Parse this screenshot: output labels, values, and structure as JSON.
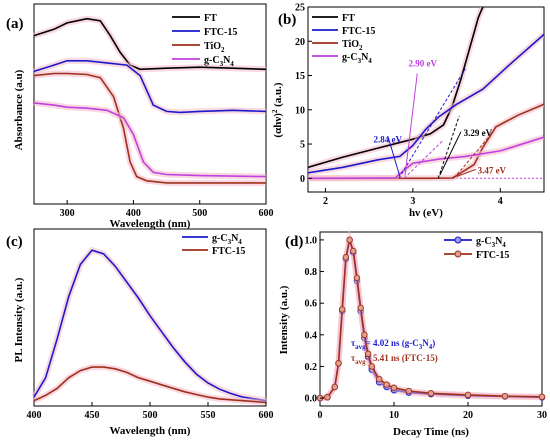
{
  "figure": {
    "panels": [
      {
        "label": "(a)"
      },
      {
        "label": "(b)"
      },
      {
        "label": "(c)"
      },
      {
        "label": "(d)"
      }
    ]
  },
  "chart_data": [
    {
      "type": "line",
      "panel": "(a)",
      "xlabel": "Wavelength (nm)",
      "ylabel": "Absorbance (a.u)",
      "xlim": [
        250,
        600
      ],
      "x_ticks": [
        300,
        400,
        500,
        600
      ],
      "y_ticks": [],
      "legend_position": "top-right",
      "series": [
        {
          "name": "FT",
          "color": "#000000",
          "points": [
            [
              250,
              0.8
            ],
            [
              280,
              0.83
            ],
            [
              300,
              0.86
            ],
            [
              330,
              0.88
            ],
            [
              350,
              0.87
            ],
            [
              365,
              0.8
            ],
            [
              380,
              0.72
            ],
            [
              395,
              0.66
            ],
            [
              410,
              0.64
            ],
            [
              450,
              0.645
            ],
            [
              500,
              0.65
            ],
            [
              550,
              0.645
            ],
            [
              600,
              0.64
            ]
          ]
        },
        {
          "name": "FTC-15",
          "color": "#1a1acc",
          "points": [
            [
              250,
              0.63
            ],
            [
              280,
              0.66
            ],
            [
              300,
              0.68
            ],
            [
              330,
              0.68
            ],
            [
              360,
              0.67
            ],
            [
              390,
              0.66
            ],
            [
              410,
              0.61
            ],
            [
              430,
              0.47
            ],
            [
              450,
              0.44
            ],
            [
              470,
              0.435
            ],
            [
              500,
              0.44
            ],
            [
              550,
              0.445
            ],
            [
              600,
              0.44
            ]
          ]
        },
        {
          "name": "TiO2",
          "color": "#a0301c",
          "points": [
            [
              250,
              0.61
            ],
            [
              280,
              0.62
            ],
            [
              300,
              0.62
            ],
            [
              330,
              0.615
            ],
            [
              350,
              0.6
            ],
            [
              370,
              0.51
            ],
            [
              385,
              0.36
            ],
            [
              395,
              0.2
            ],
            [
              405,
              0.13
            ],
            [
              420,
              0.11
            ],
            [
              450,
              0.1
            ],
            [
              500,
              0.1
            ],
            [
              600,
              0.1
            ]
          ]
        },
        {
          "name": "g-C3N4",
          "color": "#c040e0",
          "points": [
            [
              250,
              0.48
            ],
            [
              280,
              0.47
            ],
            [
              300,
              0.46
            ],
            [
              330,
              0.455
            ],
            [
              360,
              0.445
            ],
            [
              385,
              0.41
            ],
            [
              400,
              0.33
            ],
            [
              415,
              0.2
            ],
            [
              430,
              0.15
            ],
            [
              450,
              0.14
            ],
            [
              500,
              0.135
            ],
            [
              600,
              0.13
            ]
          ]
        }
      ]
    },
    {
      "type": "line",
      "panel": "(b)",
      "xlabel": "hν (eV)",
      "ylabel": "(αhν)² (a.u.)",
      "xlim": [
        1.8,
        4.5
      ],
      "ylim": [
        -2,
        25
      ],
      "x_ticks": [
        2,
        3,
        4
      ],
      "y_ticks": [
        0,
        5,
        10,
        15,
        20,
        25
      ],
      "legend_position": "top-left",
      "series": [
        {
          "name": "FT",
          "color": "#000000",
          "points": [
            [
              1.8,
              1.6
            ],
            [
              2.2,
              3.1
            ],
            [
              2.6,
              4.4
            ],
            [
              3.0,
              5.7
            ],
            [
              3.2,
              6.5
            ],
            [
              3.35,
              7.8
            ],
            [
              3.45,
              10.5
            ],
            [
              3.55,
              14.5
            ],
            [
              3.65,
              19.0
            ],
            [
              3.75,
              23.5
            ],
            [
              3.8,
              25.0
            ]
          ]
        },
        {
          "name": "FTC-15",
          "color": "#1a1acc",
          "points": [
            [
              1.8,
              0.8
            ],
            [
              2.2,
              1.6
            ],
            [
              2.6,
              2.7
            ],
            [
              2.85,
              3.2
            ],
            [
              3.0,
              4.8
            ],
            [
              3.15,
              7.2
            ],
            [
              3.3,
              9.0
            ],
            [
              3.5,
              10.8
            ],
            [
              3.8,
              13.0
            ],
            [
              4.1,
              16.5
            ],
            [
              4.5,
              21.0
            ]
          ]
        },
        {
          "name": "TiO2",
          "color": "#a0301c",
          "points": [
            [
              1.8,
              0.0
            ],
            [
              3.2,
              0.0
            ],
            [
              3.45,
              0.05
            ],
            [
              3.5,
              0.4
            ],
            [
              3.7,
              2.0
            ],
            [
              3.8,
              4.5
            ],
            [
              3.95,
              7.5
            ],
            [
              4.2,
              9.2
            ],
            [
              4.5,
              10.8
            ]
          ]
        },
        {
          "name": "g-C3N4",
          "color": "#c040e0",
          "points": [
            [
              1.8,
              0.0
            ],
            [
              2.8,
              0.05
            ],
            [
              2.9,
              1.2
            ],
            [
              3.0,
              2.2
            ],
            [
              3.3,
              2.8
            ],
            [
              3.6,
              3.2
            ],
            [
              4.0,
              4.0
            ],
            [
              4.5,
              6.0
            ]
          ]
        }
      ],
      "fit_lines": [
        {
          "color": "#1a1acc",
          "points": [
            [
              2.84,
              0
            ],
            [
              3.6,
              16
            ]
          ]
        },
        {
          "color": "#c040e0",
          "points": [
            [
              2.9,
              0
            ],
            [
              3.35,
              5.6
            ]
          ]
        },
        {
          "color": "#000000",
          "points": [
            [
              3.29,
              0
            ],
            [
              3.53,
              9.1
            ]
          ]
        },
        {
          "color": "#a0301c",
          "points": [
            [
              3.47,
              0
            ],
            [
              3.88,
              6.2
            ]
          ]
        }
      ],
      "annotations": [
        {
          "text": "2.84 eV",
          "color": "#1a1acc",
          "x": 2.55,
          "y": 5.2
        },
        {
          "text": "2.90 eV",
          "color": "#c040e0",
          "x": 2.95,
          "y": 16.3
        },
        {
          "text": "3.29 eV",
          "color": "#000000",
          "x": 3.58,
          "y": 6.2
        },
        {
          "text": "3.47 eV",
          "color": "#a0301c",
          "x": 3.74,
          "y": 0.7
        }
      ]
    },
    {
      "type": "line",
      "panel": "(c)",
      "xlabel": "Wavelength (nm)",
      "ylabel": "PL Intensity (a.u.)",
      "xlim": [
        400,
        600
      ],
      "ylim": [
        0,
        1
      ],
      "x_ticks": [
        400,
        450,
        500,
        550,
        600
      ],
      "y_ticks": [],
      "legend_position": "top-right",
      "series": [
        {
          "name": "g-C3N4",
          "color": "#1a1acc",
          "points": [
            [
              400,
              0.05
            ],
            [
              410,
              0.16
            ],
            [
              420,
              0.38
            ],
            [
              430,
              0.62
            ],
            [
              440,
              0.8
            ],
            [
              450,
              0.88
            ],
            [
              460,
              0.86
            ],
            [
              470,
              0.79
            ],
            [
              480,
              0.7
            ],
            [
              490,
              0.61
            ],
            [
              500,
              0.51
            ],
            [
              510,
              0.42
            ],
            [
              520,
              0.33
            ],
            [
              530,
              0.25
            ],
            [
              540,
              0.18
            ],
            [
              550,
              0.13
            ],
            [
              560,
              0.095
            ],
            [
              570,
              0.07
            ],
            [
              580,
              0.05
            ],
            [
              590,
              0.04
            ],
            [
              600,
              0.03
            ]
          ]
        },
        {
          "name": "FTC-15",
          "color": "#a0301c",
          "points": [
            [
              400,
              0.03
            ],
            [
              410,
              0.06
            ],
            [
              420,
              0.1
            ],
            [
              430,
              0.16
            ],
            [
              440,
              0.2
            ],
            [
              450,
              0.22
            ],
            [
              460,
              0.22
            ],
            [
              470,
              0.21
            ],
            [
              480,
              0.19
            ],
            [
              490,
              0.16
            ],
            [
              500,
              0.14
            ],
            [
              510,
              0.12
            ],
            [
              520,
              0.1
            ],
            [
              530,
              0.08
            ],
            [
              540,
              0.065
            ],
            [
              550,
              0.05
            ],
            [
              560,
              0.04
            ],
            [
              570,
              0.035
            ],
            [
              580,
              0.03
            ],
            [
              590,
              0.025
            ],
            [
              600,
              0.02
            ]
          ]
        }
      ]
    },
    {
      "type": "line",
      "panel": "(d)",
      "xlabel": "Decay Time (ns)",
      "ylabel": "Intensity (a.u.)",
      "xlim": [
        0,
        30
      ],
      "ylim": [
        -0.05,
        1.05
      ],
      "x_ticks": [
        0,
        10,
        20,
        30
      ],
      "y_ticks": [
        0.0,
        0.2,
        0.4,
        0.6,
        0.8,
        1.0
      ],
      "legend_position": "top-right",
      "series": [
        {
          "name": "g-C3N4",
          "color": "#1a1acc",
          "points": [
            [
              0,
              0.0
            ],
            [
              1,
              0.005
            ],
            [
              2,
              0.07
            ],
            [
              2.5,
              0.22
            ],
            [
              3,
              0.55
            ],
            [
              3.5,
              0.88
            ],
            [
              4,
              1.0
            ],
            [
              4.5,
              0.92
            ],
            [
              5,
              0.74
            ],
            [
              5.5,
              0.55
            ],
            [
              6,
              0.38
            ],
            [
              6.5,
              0.26
            ],
            [
              7,
              0.18
            ],
            [
              8,
              0.1
            ],
            [
              9,
              0.07
            ],
            [
              10,
              0.05
            ],
            [
              12,
              0.035
            ],
            [
              15,
              0.025
            ],
            [
              20,
              0.015
            ],
            [
              25,
              0.01
            ],
            [
              30,
              0.005
            ]
          ]
        },
        {
          "name": "FTC-15",
          "color": "#a0301c",
          "points": [
            [
              0,
              0.0
            ],
            [
              1,
              0.005
            ],
            [
              2,
              0.07
            ],
            [
              2.5,
              0.22
            ],
            [
              3,
              0.56
            ],
            [
              3.5,
              0.89
            ],
            [
              4,
              1.0
            ],
            [
              4.5,
              0.93
            ],
            [
              5,
              0.76
            ],
            [
              5.5,
              0.57
            ],
            [
              6,
              0.4
            ],
            [
              6.5,
              0.28
            ],
            [
              7,
              0.2
            ],
            [
              8,
              0.12
            ],
            [
              9,
              0.085
            ],
            [
              10,
              0.065
            ],
            [
              12,
              0.045
            ],
            [
              15,
              0.03
            ],
            [
              20,
              0.02
            ],
            [
              25,
              0.012
            ],
            [
              30,
              0.008
            ]
          ]
        }
      ],
      "annotations": [
        {
          "text": "τavg = 4.02 ns (g-C3N4)",
          "color": "#1a1acc"
        },
        {
          "text": "τavg = 5.41 ns (FTC-15)",
          "color": "#a0301c"
        }
      ]
    }
  ]
}
